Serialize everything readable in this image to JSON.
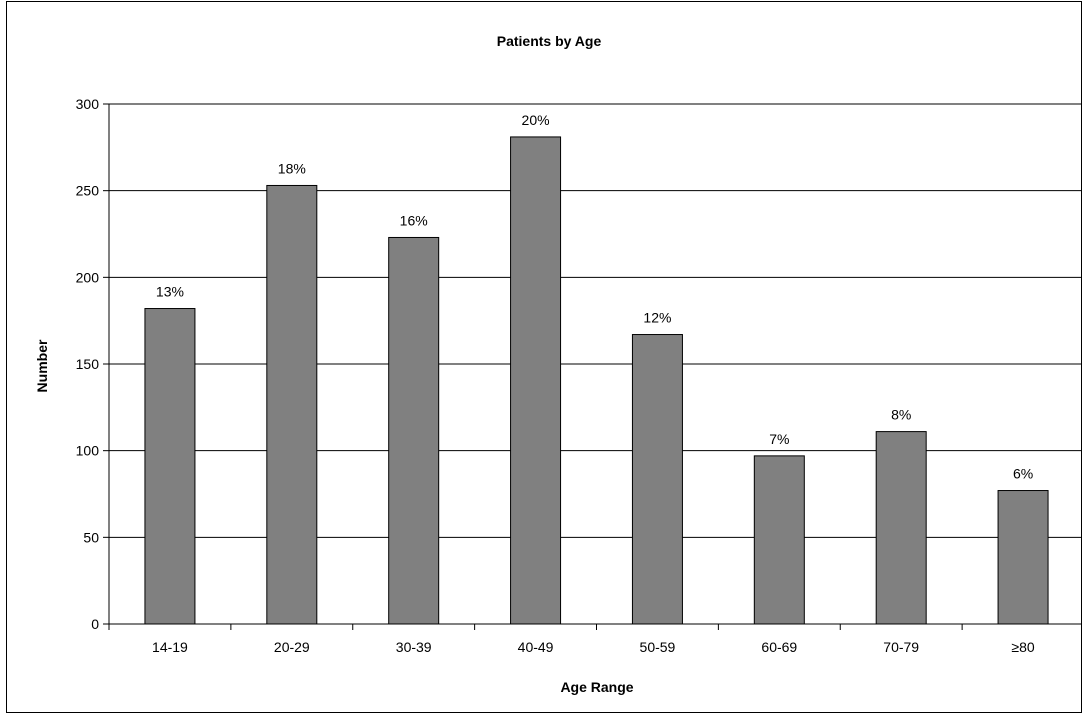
{
  "chart_data": {
    "type": "bar",
    "title": "Patients by Age",
    "xlabel": "Age Range",
    "ylabel": "Number",
    "categories": [
      "14-19",
      "20-29",
      "30-39",
      "40-49",
      "50-59",
      "60-69",
      "70-79",
      "≥80"
    ],
    "values": [
      182,
      253,
      223,
      281,
      167,
      97,
      111,
      77
    ],
    "data_labels": [
      "13%",
      "18%",
      "16%",
      "20%",
      "12%",
      "7%",
      "8%",
      "6%"
    ],
    "ylim": [
      0,
      300
    ],
    "yticks": [
      0,
      50,
      100,
      150,
      200,
      250,
      300
    ],
    "grid": true,
    "legend": "none",
    "colors": {
      "bar_fill": "#808080",
      "bar_stroke": "#000000",
      "grid": "#000000",
      "axis": "#000000",
      "background": "#ffffff"
    }
  }
}
